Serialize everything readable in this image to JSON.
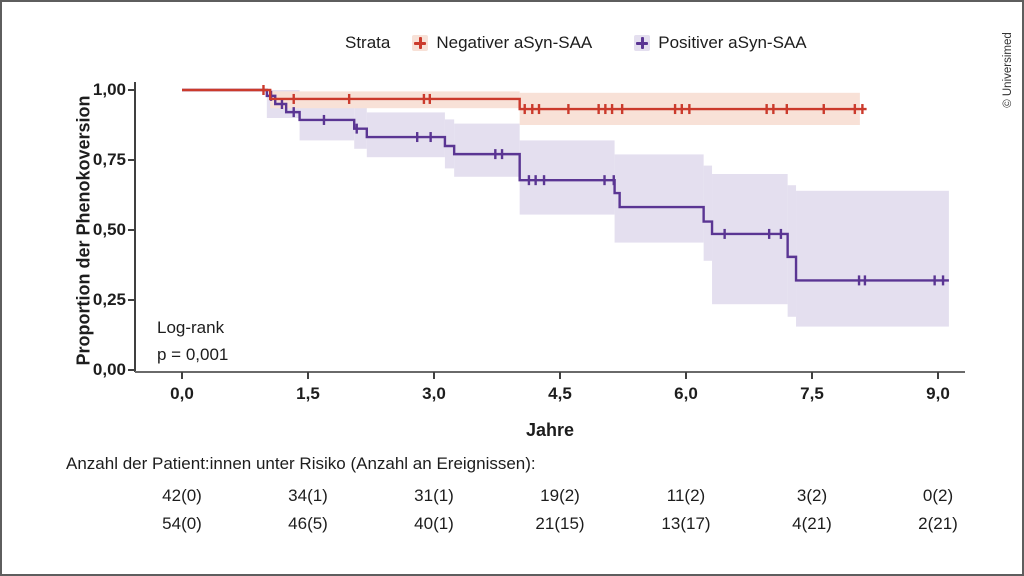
{
  "frame": {
    "copyright": "© Universimed"
  },
  "chart_data": {
    "type": "line",
    "subtype": "kaplan-meier-step",
    "title": "",
    "xlabel": "Jahre",
    "ylabel": "Proportion der Phenokoversion",
    "xlim": [
      0,
      9.4
    ],
    "ylim": [
      0,
      1
    ],
    "grid": false,
    "legend_position": "top",
    "legend_title": "Strata",
    "xticks": {
      "values": [
        0,
        1.5,
        3,
        4.5,
        6,
        7.5,
        9
      ],
      "labels": [
        "0,0",
        "1,5",
        "3,0",
        "4,5",
        "6,0",
        "7,5",
        "9,0"
      ]
    },
    "yticks": {
      "values": [
        1,
        0.75,
        0.5,
        0.25,
        0
      ],
      "labels": [
        "1,00",
        "0,75",
        "0,50",
        "0,25",
        "0,00"
      ]
    },
    "annotation": {
      "line1": "Log-rank",
      "line2": "p = 0,001"
    },
    "series": [
      {
        "name": "Negativer aSyn-SAA",
        "color": "#cb3a2c",
        "band_color": "#f8e1d7",
        "steps": [
          [
            0,
            1.0
          ],
          [
            1.05,
            0.968
          ],
          [
            4.02,
            0.932
          ]
        ],
        "end": 8.15,
        "censors": [
          [
            0.97,
            1.0
          ],
          [
            1.33,
            0.968
          ],
          [
            1.99,
            0.968
          ],
          [
            2.88,
            0.968
          ],
          [
            2.95,
            0.968
          ],
          [
            4.08,
            0.932
          ],
          [
            4.17,
            0.932
          ],
          [
            4.25,
            0.932
          ],
          [
            4.6,
            0.932
          ],
          [
            4.96,
            0.932
          ],
          [
            5.04,
            0.932
          ],
          [
            5.12,
            0.932
          ],
          [
            5.24,
            0.932
          ],
          [
            5.87,
            0.932
          ],
          [
            5.95,
            0.932
          ],
          [
            6.04,
            0.932
          ],
          [
            6.96,
            0.932
          ],
          [
            7.04,
            0.932
          ],
          [
            7.2,
            0.932
          ],
          [
            7.64,
            0.932
          ],
          [
            8.01,
            0.932
          ],
          [
            8.1,
            0.932
          ]
        ],
        "band": [
          [
            1.05,
            4.02,
            0.995,
            0.935
          ],
          [
            4.02,
            8.07,
            0.99,
            0.875
          ]
        ]
      },
      {
        "name": "Positiver aSyn-SAA",
        "color": "#5a3593",
        "band_color": "#e4dfef",
        "steps": [
          [
            0,
            1.0
          ],
          [
            1.01,
            0.979
          ],
          [
            1.11,
            0.95
          ],
          [
            1.24,
            0.921
          ],
          [
            1.4,
            0.893
          ],
          [
            2.05,
            0.862
          ],
          [
            2.2,
            0.832
          ],
          [
            3.13,
            0.8
          ],
          [
            3.24,
            0.771
          ],
          [
            4.02,
            0.678
          ],
          [
            5.15,
            0.632
          ],
          [
            5.21,
            0.582
          ],
          [
            6.21,
            0.53
          ],
          [
            6.31,
            0.486
          ],
          [
            7.21,
            0.404
          ],
          [
            7.31,
            0.32
          ]
        ],
        "end": 9.13,
        "censors": [
          [
            1.06,
            0.979
          ],
          [
            1.19,
            0.95
          ],
          [
            1.33,
            0.921
          ],
          [
            1.69,
            0.893
          ],
          [
            2.08,
            0.862
          ],
          [
            2.8,
            0.832
          ],
          [
            2.96,
            0.832
          ],
          [
            3.73,
            0.771
          ],
          [
            3.81,
            0.771
          ],
          [
            4.13,
            0.678
          ],
          [
            4.21,
            0.678
          ],
          [
            4.31,
            0.678
          ],
          [
            5.03,
            0.678
          ],
          [
            5.14,
            0.678
          ],
          [
            6.46,
            0.486
          ],
          [
            6.99,
            0.486
          ],
          [
            7.13,
            0.486
          ],
          [
            8.06,
            0.32
          ],
          [
            8.13,
            0.32
          ],
          [
            8.96,
            0.32
          ],
          [
            9.06,
            0.32
          ]
        ],
        "band": [
          [
            1.01,
            1.4,
            1.0,
            0.9
          ],
          [
            1.4,
            2.05,
            0.965,
            0.82
          ],
          [
            2.05,
            2.2,
            0.94,
            0.79
          ],
          [
            2.2,
            3.13,
            0.92,
            0.76
          ],
          [
            3.13,
            3.24,
            0.895,
            0.72
          ],
          [
            3.24,
            4.02,
            0.88,
            0.69
          ],
          [
            4.02,
            5.15,
            0.82,
            0.555
          ],
          [
            5.15,
            6.21,
            0.77,
            0.455
          ],
          [
            6.21,
            6.31,
            0.73,
            0.39
          ],
          [
            6.31,
            7.21,
            0.7,
            0.235
          ],
          [
            7.21,
            7.31,
            0.66,
            0.19
          ],
          [
            7.31,
            9.13,
            0.64,
            0.155
          ]
        ]
      }
    ],
    "risk_table": {
      "header": "Anzahl der Patient:innen unter Risiko (Anzahl an Ereignissen):",
      "columns": [
        0,
        1.5,
        3,
        4.5,
        6,
        7.5,
        9
      ],
      "rows": [
        [
          "42(0)",
          "34(1)",
          "31(1)",
          "19(2)",
          "11(2)",
          "3(2)",
          "0(2)"
        ],
        [
          "54(0)",
          "46(5)",
          "40(1)",
          "21(15)",
          "13(17)",
          "4(21)",
          "2(21)"
        ]
      ]
    }
  }
}
